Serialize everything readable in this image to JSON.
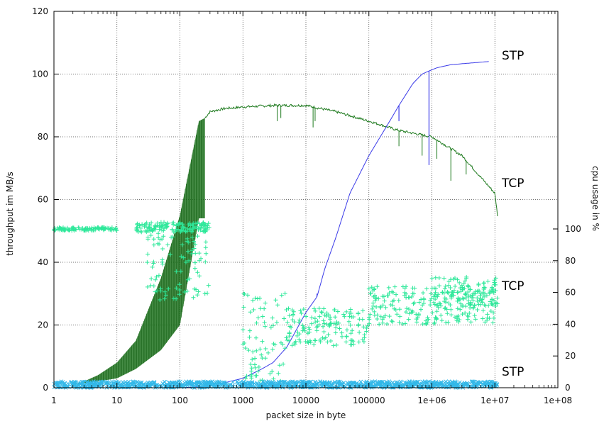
{
  "chart_data": {
    "type": "line",
    "xlabel": "packet size in byte",
    "ylabel": "throughput im MB/s",
    "y2label": "cpu usage in %",
    "x_scale": "log",
    "xlim": [
      1,
      100000000
    ],
    "ylim": [
      0,
      120
    ],
    "y2lim": [
      0,
      120
    ],
    "grid": true,
    "x_ticks": [
      1,
      10,
      100,
      1000,
      10000,
      100000,
      1000000,
      10000000,
      100000000
    ],
    "x_tick_labels": [
      "1",
      "10",
      "100",
      "1000",
      "10000",
      "100000",
      "1e+06",
      "1e+07",
      "1e+08"
    ],
    "y_ticks": [
      0,
      20,
      40,
      60,
      80,
      100,
      120
    ],
    "y_tick_labels": [
      "0",
      "20",
      "40",
      "60",
      "80",
      "100",
      "120"
    ],
    "y2_ticks": [
      0,
      20,
      40,
      60,
      80,
      100
    ],
    "y2_tick_labels": [
      "0",
      "20",
      "40",
      "60",
      "80",
      "100"
    ],
    "colors": {
      "tcp_throughput": "#1e7a1e",
      "stp_throughput": "#3a3ae8",
      "tcp_cpu": "#2ee89a",
      "stp_cpu": "#33b8e8",
      "grid": "#444444"
    },
    "series": [
      {
        "name": "TCP",
        "axis": "y",
        "style": "line",
        "x": [
          1,
          2,
          3,
          5,
          10,
          20,
          50,
          100,
          200,
          250,
          300,
          500,
          1000,
          3000,
          10000,
          30000,
          100000,
          300000,
          1000000,
          3000000,
          10000000,
          11000000
        ],
        "y": [
          0.5,
          1,
          2,
          4,
          8,
          15,
          35,
          55,
          85,
          86,
          88,
          89,
          89.5,
          90,
          90,
          88,
          85,
          82,
          80,
          74,
          62,
          55
        ],
        "band_low": [
          0.5,
          1,
          1.5,
          2,
          3,
          6,
          12,
          20,
          54,
          54,
          88,
          89,
          89.5,
          90,
          90,
          88,
          85,
          82,
          80,
          74,
          62,
          55
        ],
        "dips": [
          [
            3500,
            85
          ],
          [
            4000,
            86
          ],
          [
            13000,
            83
          ],
          [
            14000,
            85
          ],
          [
            300000,
            77
          ],
          [
            700000,
            74
          ],
          [
            1200000,
            73
          ],
          [
            2000000,
            66
          ],
          [
            3500000,
            68
          ]
        ]
      },
      {
        "name": "STP",
        "axis": "y",
        "style": "line",
        "x": [
          1,
          10,
          100,
          300,
          1000,
          2000,
          3000,
          5000,
          10000,
          15000,
          20000,
          30000,
          50000,
          100000,
          200000,
          300000,
          500000,
          700000,
          900000,
          1200000,
          2000000,
          4000000,
          8000000
        ],
        "y": [
          0,
          0,
          0,
          0.5,
          3,
          6,
          8,
          13,
          24,
          29,
          38,
          48,
          62,
          74,
          84,
          90,
          97,
          100,
          101,
          102,
          103,
          103.5,
          104
        ],
        "dips": [
          [
            15000,
            30
          ],
          [
            300000,
            85
          ],
          [
            900000,
            71
          ]
        ]
      },
      {
        "name": "TCP",
        "axis": "y2",
        "style": "points",
        "marker": "+",
        "bands": [
          {
            "x_range": [
              1,
              10
            ],
            "level": 100,
            "spread": 1
          },
          {
            "x_range": [
              20,
              300
            ],
            "level": 101,
            "spread": 3
          },
          {
            "x_range": [
              30,
              300
            ],
            "level": 80,
            "spread": 25
          },
          {
            "x_range": [
              1000,
              5000
            ],
            "level": 32,
            "spread": 28
          },
          {
            "x_range": [
              5000,
              100000
            ],
            "level": 38,
            "spread": 12
          },
          {
            "x_range": [
              100000,
              10000000
            ],
            "level": 52,
            "spread": 12
          },
          {
            "x_range": [
              1000000,
              11000000
            ],
            "level": 60,
            "spread": 10
          }
        ]
      },
      {
        "name": "STP",
        "axis": "y2",
        "style": "points",
        "marker": "x",
        "bands": [
          {
            "x_range": [
              1,
              11000000
            ],
            "level": 2,
            "spread": 2
          }
        ]
      }
    ]
  }
}
